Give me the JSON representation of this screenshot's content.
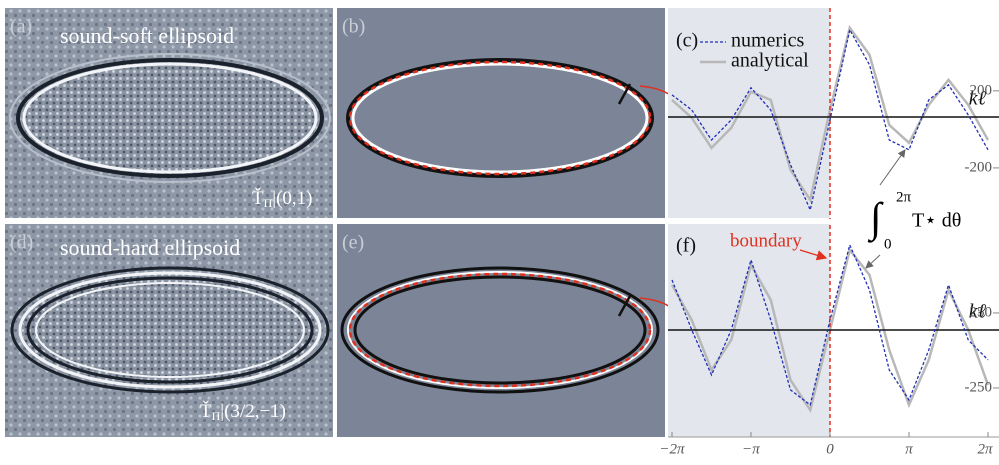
{
  "panels": {
    "a": {
      "label": "(a)",
      "title": "sound-soft ellipsoid",
      "operator": "Ť",
      "operator_sub": "Π",
      "operator_eval": "|(0,1)"
    },
    "b": {
      "label": "(b)"
    },
    "d": {
      "label": "(d)",
      "title": "sound-hard ellipsoid",
      "operator": "Ť",
      "operator_sub": "Π",
      "operator_eval": "|(3/2,−1)"
    },
    "e": {
      "label": "(e)"
    }
  },
  "chart_data": [
    {
      "type": "line",
      "label": "(c)",
      "axis_label": "kℓ",
      "x": [
        -6.283185,
        -5.497787,
        -4.712389,
        -3.926991,
        -3.141593,
        -2.356194,
        -1.570796,
        -0.785398,
        0,
        0.785398,
        1.570796,
        2.356194,
        3.141593,
        3.926991,
        4.712389,
        5.497787,
        6.283185
      ],
      "xlim": [
        -6.283185,
        6.283185
      ],
      "ylim": [
        -460,
        630
      ],
      "yticks": [
        200,
        -200
      ],
      "series": [
        {
          "name": "numerics",
          "color": "#1f2fb5",
          "dashed": true,
          "values": [
            179,
            101,
            -55,
            49,
            216,
            101,
            -184,
            -418,
            49,
            517,
            335,
            -55,
            -106,
            153,
            231,
            75,
            -106
          ]
        },
        {
          "name": "analytical",
          "color": "#b8b8b8",
          "dashed": false,
          "values": [
            153,
            60,
            -96,
            8,
            195,
            153,
            -210,
            -366,
            101,
            527,
            387,
            23,
            -70,
            127,
            257,
            127,
            -55
          ]
        }
      ],
      "annotation": {
        "integral": "∫",
        "lower": "0",
        "upper": "2π",
        "body": "T⋆ dθ"
      }
    },
    {
      "type": "line",
      "label": "(f)",
      "axis_label": "kℓ",
      "annotation": "boundary",
      "x": [
        -6.283185,
        -5.497787,
        -4.712389,
        -3.926991,
        -3.141593,
        -2.356194,
        -1.570796,
        -0.785398,
        0,
        0.785398,
        1.570796,
        2.356194,
        3.141593,
        3.926991,
        4.712389,
        5.497787,
        6.283185
      ],
      "xlim": [
        -6.283185,
        6.283185
      ],
      "ylim": [
        -577,
        843
      ],
      "yticks": [
        250,
        -250
      ],
      "xticks": [
        {
          "value": -6.283185,
          "label": "−2π"
        },
        {
          "value": -3.141593,
          "label": "−π"
        },
        0,
        {
          "value": 3.141593,
          "label": "π"
        },
        {
          "value": 6.283185,
          "label": "2π"
        }
      ],
      "series": [
        {
          "color": "#1f2fb5",
          "dashed": true,
          "values": [
            470,
            137,
            -163,
            137,
            603,
            203,
            -263,
            -363,
            203,
            703,
            403,
            -130,
            -330,
            3,
            437,
            70,
            -63
          ]
        },
        {
          "color": "#b8b8b8",
          "dashed": false,
          "values": [
            437,
            203,
            -130,
            70,
            570,
            337,
            -197,
            -397,
            137,
            670,
            503,
            3,
            -363,
            -63,
            403,
            137,
            -230
          ]
        }
      ]
    }
  ]
}
